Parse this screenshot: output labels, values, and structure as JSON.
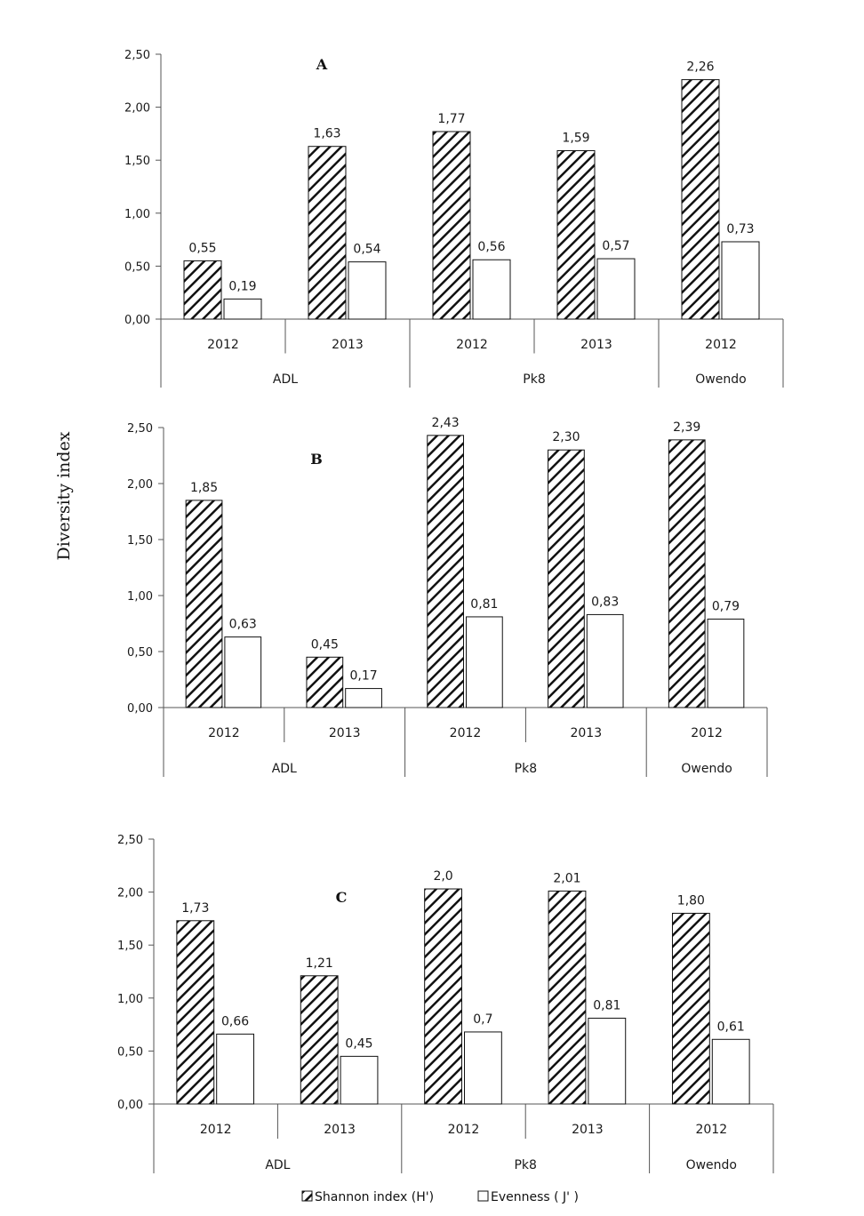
{
  "figure": {
    "ylabel": "Diversity index",
    "legend": {
      "position": "bottom-center",
      "shannon_label": "Shannon index (H')",
      "evenness_label": "Evenness ( J' )"
    }
  },
  "chart_data": [
    {
      "type": "bar",
      "panel": "A",
      "categories": [
        "2012",
        "2013",
        "2012",
        "2013",
        "2012"
      ],
      "groups": [
        {
          "name": "ADL",
          "span": 2
        },
        {
          "name": "Pk8",
          "span": 2
        },
        {
          "name": "Owendo",
          "span": 1
        }
      ],
      "series": [
        {
          "name": "Shannon index (H')",
          "values": [
            0.55,
            1.63,
            1.77,
            1.59,
            2.26
          ],
          "labels": [
            "0,55",
            "1,63",
            "1,77",
            "1,59",
            "2,26"
          ]
        },
        {
          "name": "Evenness ( J' )",
          "values": [
            0.19,
            0.54,
            0.56,
            0.57,
            0.73
          ],
          "labels": [
            "0,19",
            "0,54",
            "0,56",
            "0,57",
            "0,73"
          ]
        }
      ],
      "ylim": [
        0,
        2.5
      ],
      "yticks": [
        "0,00",
        "0,50",
        "1,00",
        "1,50",
        "2,00",
        "2,50"
      ],
      "grid": false
    },
    {
      "type": "bar",
      "panel": "B",
      "categories": [
        "2012",
        "2013",
        "2012",
        "2013",
        "2012"
      ],
      "groups": [
        {
          "name": "ADL",
          "span": 2
        },
        {
          "name": "Pk8",
          "span": 2
        },
        {
          "name": "Owendo",
          "span": 1
        }
      ],
      "series": [
        {
          "name": "Shannon index (H')",
          "values": [
            1.85,
            0.45,
            2.43,
            2.3,
            2.39
          ],
          "labels": [
            "1,85",
            "0,45",
            "2,43",
            "2,30",
            "2,39"
          ]
        },
        {
          "name": "Evenness ( J' )",
          "values": [
            0.63,
            0.17,
            0.81,
            0.83,
            0.79
          ],
          "labels": [
            "0,63",
            "0,17",
            "0,81",
            "0,83",
            "0,79"
          ]
        }
      ],
      "ylim": [
        0,
        2.5
      ],
      "yticks": [
        "0,00",
        "0,50",
        "1,00",
        "1,50",
        "2,00",
        "2,50"
      ],
      "grid": false
    },
    {
      "type": "bar",
      "panel": "C",
      "categories": [
        "2012",
        "2013",
        "2012",
        "2013",
        "2012"
      ],
      "groups": [
        {
          "name": "ADL",
          "span": 2
        },
        {
          "name": "Pk8",
          "span": 2
        },
        {
          "name": "Owendo",
          "span": 1
        }
      ],
      "series": [
        {
          "name": "Shannon index (H')",
          "values": [
            1.73,
            1.21,
            2.03,
            2.01,
            1.8
          ],
          "labels": [
            "1,73",
            "1,21",
            "2,0",
            "2,01",
            "1,80"
          ]
        },
        {
          "name": "Evenness ( J' )",
          "values": [
            0.66,
            0.45,
            0.68,
            0.81,
            0.61
          ],
          "labels": [
            "0,66",
            "0,45",
            "0,7",
            "0,81",
            "0,61"
          ]
        }
      ],
      "ylim": [
        0,
        2.5
      ],
      "yticks": [
        "0,00",
        "0,50",
        "1,00",
        "1,50",
        "2,00",
        "2,50"
      ],
      "grid": false
    }
  ]
}
